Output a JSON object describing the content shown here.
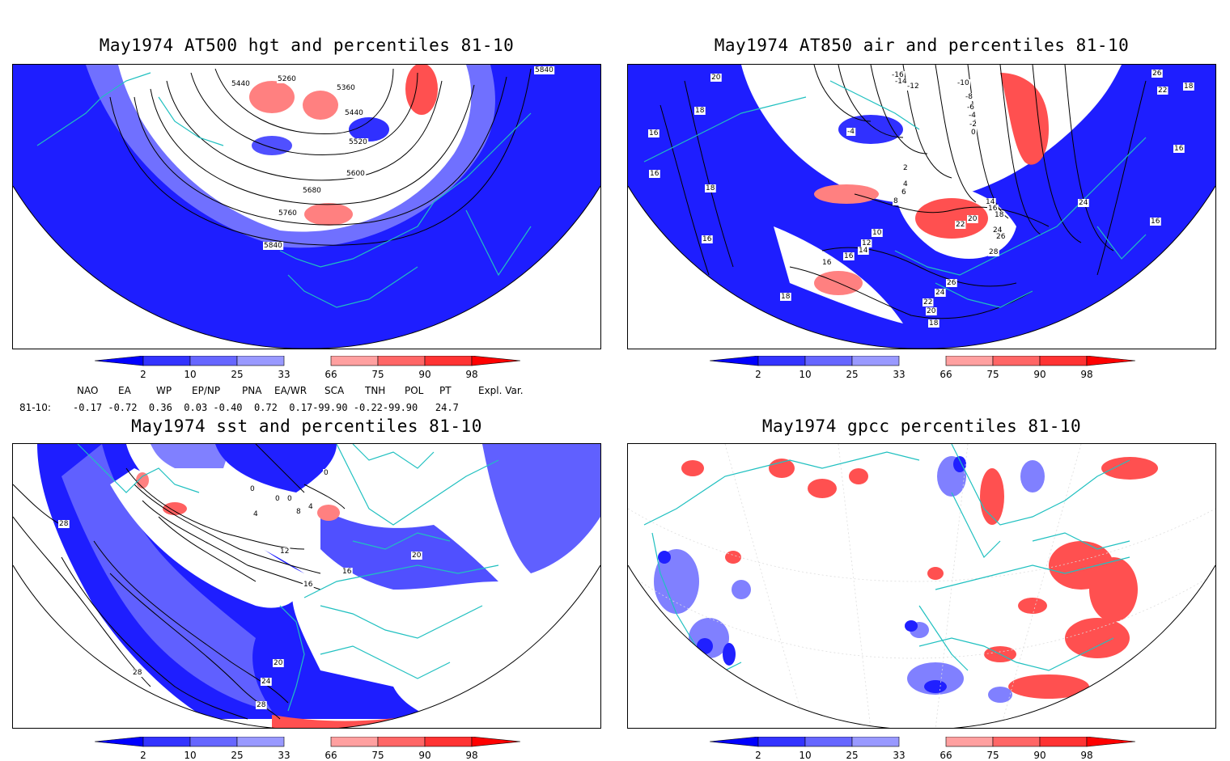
{
  "panels": [
    {
      "title": "May1974 AT500 hgt and percentiles 81-10",
      "contour_labels": [
        "5440",
        "5260",
        "5360",
        "5840",
        "5440",
        "5520",
        "5600",
        "5680",
        "5760",
        "5840"
      ]
    },
    {
      "title": "May1974 AT850 air and percentiles 81-10",
      "contour_labels": [
        "20",
        "-16",
        "-14",
        "-12",
        "-10",
        "-8",
        "-6",
        "-4",
        "-2",
        "0",
        "26",
        "22",
        "18",
        "18",
        "-4",
        "16",
        "16",
        "16",
        "18",
        "2",
        "4",
        "6",
        "8",
        "14",
        "16",
        "18",
        "10",
        "12",
        "14",
        "16",
        "20",
        "22",
        "24",
        "26",
        "28",
        "24",
        "26",
        "24",
        "22",
        "20",
        "18",
        "16",
        "18",
        "16",
        "16"
      ]
    },
    {
      "title": "May1974 sst and percentiles 81-10",
      "contour_labels": [
        "0",
        "0",
        "0",
        "0",
        "4",
        "4",
        "8",
        "12",
        "16",
        "16",
        "20",
        "28",
        "28",
        "24",
        "20",
        "28"
      ]
    },
    {
      "title": "May1974 gpcc percentiles 81-10",
      "contour_labels": []
    }
  ],
  "colorbar": {
    "labels": [
      "2",
      "10",
      "25",
      "33",
      "66",
      "75",
      "90",
      "98"
    ],
    "colors": [
      "#0000ff",
      "#3333ff",
      "#6666ff",
      "#9999ff",
      "#ffa0a0",
      "#ff6666",
      "#ff3333",
      "#ff0000"
    ]
  },
  "indices": {
    "headers": [
      "NAO",
      "EA",
      "WP",
      "EP/NP",
      "PNA",
      "EA/WR",
      "SCA",
      "TNH",
      "POL",
      "PT",
      "Expl. Var."
    ],
    "row_label": "81-10:",
    "values_text": "-0.17 -0.72  0.36  0.03 -0.40  0.72  0.17-99.90 -0.22-99.90   24.7"
  },
  "colors": {
    "coast": "#20c0c0",
    "contour": "#000000",
    "blue_fill": "#1e1eff",
    "red_fill": "#ff5050"
  }
}
